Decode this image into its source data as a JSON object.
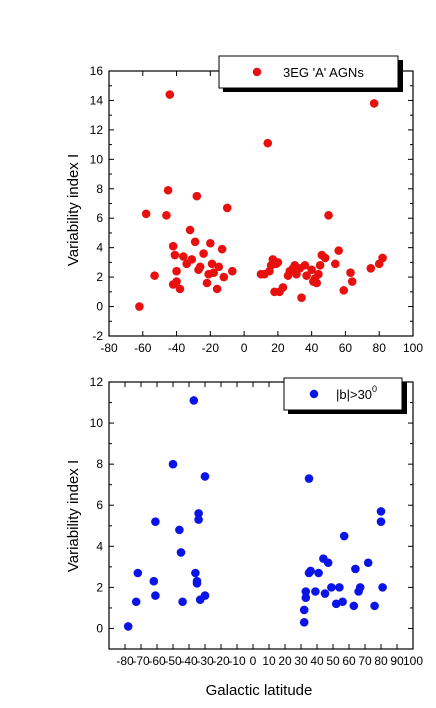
{
  "chart_data": [
    {
      "type": "scatter",
      "title": "",
      "xlabel": "",
      "ylabel": "Variability index I",
      "xlim": [
        -80,
        100
      ],
      "ylim": [
        -2,
        16
      ],
      "xticks": [
        "-80",
        "-60",
        "-40",
        "-20",
        "0",
        "20",
        "40",
        "60",
        "80",
        "100"
      ],
      "yticks": [
        "-2",
        "0",
        "2",
        "4",
        "6",
        "8",
        "10",
        "12",
        "14",
        "16"
      ],
      "legend": {
        "placement": "top-right",
        "label": "3EG 'A' AGNs"
      },
      "color": "#e8100e",
      "series": [
        {
          "name": "3EG 'A' AGNs",
          "points": [
            [
              -62,
              0.0
            ],
            [
              -58,
              6.3
            ],
            [
              -53,
              2.1
            ],
            [
              -46,
              6.2
            ],
            [
              -45,
              7.9
            ],
            [
              -44,
              14.4
            ],
            [
              -42,
              4.1
            ],
            [
              -42,
              1.5
            ],
            [
              -41,
              3.5
            ],
            [
              -40,
              1.7
            ],
            [
              -40,
              2.4
            ],
            [
              -38,
              1.2
            ],
            [
              -36,
              3.4
            ],
            [
              -34,
              2.9
            ],
            [
              -32,
              5.2
            ],
            [
              -31,
              3.2
            ],
            [
              -29,
              4.4
            ],
            [
              -28,
              7.5
            ],
            [
              -27,
              2.5
            ],
            [
              -26,
              2.7
            ],
            [
              -24,
              3.6
            ],
            [
              -22,
              1.6
            ],
            [
              -21,
              2.2
            ],
            [
              -20,
              4.3
            ],
            [
              -19,
              2.9
            ],
            [
              -18,
              2.3
            ],
            [
              -16,
              1.2
            ],
            [
              -15,
              2.7
            ],
            [
              -13,
              3.9
            ],
            [
              -12,
              2.0
            ],
            [
              -10,
              6.7
            ],
            [
              -7,
              2.4
            ],
            [
              10,
              2.2
            ],
            [
              12,
              2.2
            ],
            [
              14,
              11.1
            ],
            [
              15,
              2.4
            ],
            [
              16,
              2.8
            ],
            [
              17,
              3.2
            ],
            [
              18,
              1.0
            ],
            [
              19,
              2.9
            ],
            [
              20,
              3.0
            ],
            [
              21,
              1.0
            ],
            [
              23,
              1.3
            ],
            [
              26,
              2.1
            ],
            [
              27,
              2.4
            ],
            [
              29,
              2.6
            ],
            [
              30,
              2.8
            ],
            [
              31,
              2.2
            ],
            [
              33,
              2.6
            ],
            [
              34,
              0.6
            ],
            [
              36,
              2.8
            ],
            [
              37,
              2.1
            ],
            [
              40,
              2.5
            ],
            [
              41,
              1.7
            ],
            [
              42,
              1.9
            ],
            [
              43,
              1.6
            ],
            [
              44,
              2.2
            ],
            [
              45,
              2.8
            ],
            [
              46,
              3.5
            ],
            [
              48,
              3.3
            ],
            [
              50,
              6.2
            ],
            [
              54,
              2.9
            ],
            [
              56,
              3.8
            ],
            [
              59,
              1.1
            ],
            [
              63,
              2.3
            ],
            [
              64,
              1.7
            ],
            [
              75,
              2.6
            ],
            [
              77,
              13.8
            ],
            [
              80,
              2.9
            ],
            [
              82,
              3.3
            ]
          ]
        }
      ]
    },
    {
      "type": "scatter",
      "title": "",
      "xlabel": "Galactic latitude",
      "ylabel": "Variability index I",
      "xlim": [
        -90,
        100
      ],
      "ylim": [
        -1,
        12
      ],
      "xticks": [
        "-80",
        "-70",
        "-60",
        "-50",
        "-40",
        "-30",
        "-20",
        "-10",
        "0",
        "10",
        "20",
        "30",
        "40",
        "50",
        "60",
        "70",
        "80",
        "90",
        "100"
      ],
      "yticks": [
        "0",
        "2",
        "4",
        "6",
        "8",
        "10",
        "12"
      ],
      "legend": {
        "placement": "top-right",
        "label": "|b|>30",
        "label_superscript": "0"
      },
      "color": "#0a14e6",
      "series": [
        {
          "name": "|b|>30",
          "points": [
            [
              -78,
              0.1
            ],
            [
              -73,
              1.3
            ],
            [
              -72,
              2.7
            ],
            [
              -62,
              2.3
            ],
            [
              -61,
              1.6
            ],
            [
              -61,
              5.2
            ],
            [
              -50,
              8.0
            ],
            [
              -46,
              4.8
            ],
            [
              -45,
              3.7
            ],
            [
              -44,
              1.3
            ],
            [
              -37,
              11.1
            ],
            [
              -36,
              2.7
            ],
            [
              -35,
              2.2
            ],
            [
              -35,
              2.3
            ],
            [
              -34,
              5.6
            ],
            [
              -34,
              5.3
            ],
            [
              -33,
              1.4
            ],
            [
              -30,
              1.6
            ],
            [
              -30,
              7.4
            ],
            [
              32,
              0.3
            ],
            [
              32,
              0.9
            ],
            [
              33,
              1.5
            ],
            [
              33,
              1.8
            ],
            [
              35,
              2.7
            ],
            [
              35,
              7.3
            ],
            [
              36,
              2.8
            ],
            [
              39,
              1.8
            ],
            [
              41,
              2.7
            ],
            [
              44,
              3.4
            ],
            [
              45,
              1.7
            ],
            [
              47,
              3.2
            ],
            [
              49,
              2.0
            ],
            [
              52,
              1.2
            ],
            [
              54,
              2.0
            ],
            [
              56,
              1.3
            ],
            [
              57,
              4.5
            ],
            [
              63,
              1.1
            ],
            [
              64,
              2.9
            ],
            [
              66,
              1.8
            ],
            [
              67,
              2.0
            ],
            [
              72,
              3.2
            ],
            [
              76,
              1.1
            ],
            [
              80,
              5.7
            ],
            [
              80,
              5.2
            ],
            [
              81,
              2.0
            ]
          ]
        }
      ]
    }
  ]
}
